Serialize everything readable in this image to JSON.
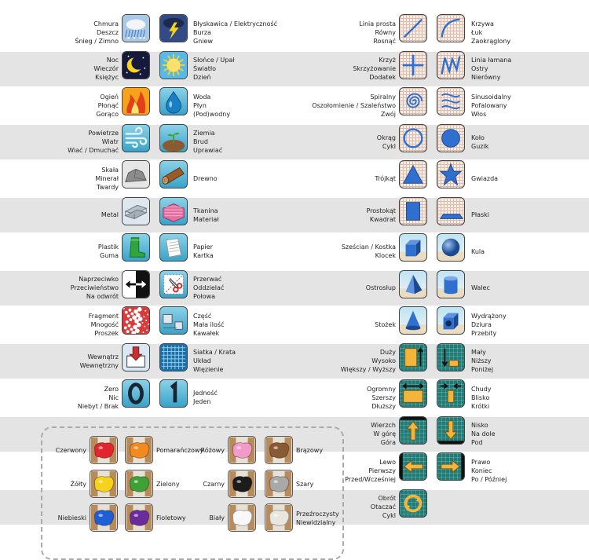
{
  "left_rows": [
    {
      "left": [
        "Chmura",
        "Deszcz",
        "Śnieg / Zimno"
      ],
      "right": [
        "Błyskawica / Elektryczność",
        "Burza",
        "Gniew"
      ],
      "icon_left": "cloud-rain-snow-icon",
      "icon_right": "lightning-storm-icon"
    },
    {
      "left": [
        "Noc",
        "Wieczór",
        "Księżyc"
      ],
      "right": [
        "Słońce / Upał",
        "Światło",
        "Dzień"
      ],
      "icon_left": "moon-night-icon",
      "icon_right": "sun-icon"
    },
    {
      "left": [
        "Ogień",
        "Płonąć",
        "Gorąco"
      ],
      "right": [
        "Woda",
        "Płyn",
        "(Pod)wodny"
      ],
      "icon_left": "fire-icon",
      "icon_right": "water-drop-icon"
    },
    {
      "left": [
        "Powietrze",
        "Wiatr",
        "Wiać / Dmuchać"
      ],
      "right": [
        "Ziemia",
        "Brud",
        "Uprawiać"
      ],
      "icon_left": "wind-icon",
      "icon_right": "soil-sprout-icon"
    },
    {
      "left": [
        "Skała",
        "Minerał",
        "Twardy"
      ],
      "right": [
        "Drewno"
      ],
      "icon_left": "rock-icon",
      "icon_right": "wood-log-icon"
    },
    {
      "left": [
        "Metal"
      ],
      "right": [
        "Tkanina",
        "Materiał"
      ],
      "icon_left": "metal-bars-icon",
      "icon_right": "fabric-icon"
    },
    {
      "left": [
        "Plastik",
        "Guma"
      ],
      "right": [
        "Papier",
        "Kartka"
      ],
      "icon_left": "rubber-boot-icon",
      "icon_right": "paper-icon"
    },
    {
      "left": [
        "Naprzeciwko",
        "Przeciwieństwo",
        "Na odwrót"
      ],
      "right": [
        "Przerwać",
        "Oddzielać",
        "Połowa"
      ],
      "icon_left": "opposite-arrows-icon",
      "icon_right": "scissors-cut-icon"
    },
    {
      "left": [
        "Fragment",
        "Mnogość",
        "Proszek"
      ],
      "right": [
        "Część",
        "Mała ilość",
        "Kawałek"
      ],
      "icon_left": "fragments-icon",
      "icon_right": "part-pieces-icon"
    },
    {
      "left": [
        "Wewnątrz",
        "Wewnętrzny"
      ],
      "right": [
        "Siatka / Krata",
        "Układ",
        "Więzienie"
      ],
      "icon_left": "inside-box-icon",
      "icon_right": "grid-lattice-icon"
    },
    {
      "left": [
        "Zero",
        "Nic",
        "Niebyt / Brak"
      ],
      "right": [
        "Jedność",
        "Jeden"
      ],
      "icon_left": "zero-icon",
      "icon_right": "one-icon"
    }
  ],
  "right_rows": [
    {
      "left": [
        "Linia prosta",
        "Równy",
        "Rosnąć"
      ],
      "right": [
        "Krzywa",
        "Łuk",
        "Zaokrąglony"
      ],
      "icon_left": "straight-line-icon",
      "icon_right": "curve-icon"
    },
    {
      "left": [
        "Krzyż",
        "Skrzyżowanie",
        "Dodatek"
      ],
      "right": [
        "Linia łamana",
        "Ostry",
        "Nierówny"
      ],
      "icon_left": "cross-icon",
      "icon_right": "zigzag-icon"
    },
    {
      "left": [
        "Spiralny",
        "Oszołomienie / Szaleństwo",
        "Zwój"
      ],
      "right": [
        "Sinusoidalny",
        "Pofalowany",
        "Włos"
      ],
      "icon_left": "spiral-icon",
      "icon_right": "wave-icon"
    },
    {
      "left": [
        "Okrąg",
        "Cykl"
      ],
      "right": [
        "Koło",
        "Guzik"
      ],
      "icon_left": "circle-outline-icon",
      "icon_right": "filled-circle-icon"
    },
    {
      "left": [
        "Trójkąt"
      ],
      "right": [
        "Gwiazda"
      ],
      "icon_left": "triangle-icon",
      "icon_right": "star-icon"
    },
    {
      "left": [
        "Prostokąt",
        "Kwadrat"
      ],
      "right": [
        "Płaski"
      ],
      "icon_left": "rectangle-icon",
      "icon_right": "flat-icon"
    },
    {
      "left": [
        "Sześcian / Kostka",
        "Klocek"
      ],
      "right": [
        "Kula"
      ],
      "icon_left": "cube-icon",
      "icon_right": "sphere-icon"
    },
    {
      "left": [
        "Ostrosłup"
      ],
      "right": [
        "Walec"
      ],
      "icon_left": "pyramid-icon",
      "icon_right": "cylinder-icon"
    },
    {
      "left": [
        "Stożek"
      ],
      "right": [
        "Wydrążony",
        "Dziura",
        "Przebity"
      ],
      "icon_left": "cone-icon",
      "icon_right": "hollow-cube-icon"
    },
    {
      "left": [
        "Duży",
        "Wysoko",
        "Większy / Wyższy"
      ],
      "right": [
        "Mały",
        "Niższy",
        "Poniżej"
      ],
      "icon_left": "big-arrow-up-icon",
      "icon_right": "small-arrow-down-icon"
    },
    {
      "left": [
        "Ogromny",
        "Szerszy",
        "Dłuższy"
      ],
      "right": [
        "Chudy",
        "Blisko",
        "Krótki"
      ],
      "icon_left": "wide-arrows-icon",
      "icon_right": "narrow-arrows-icon"
    },
    {
      "left": [
        "Wierzch",
        "W górę",
        "Góra"
      ],
      "right": [
        "Nisko",
        "Na dole",
        "Pod"
      ],
      "icon_left": "arrow-up-icon",
      "icon_right": "arrow-down-icon"
    },
    {
      "left": [
        "Lewo",
        "Pierwszy",
        "Przed/Wcześniej"
      ],
      "right": [
        "Prawo",
        "Koniec",
        "Po / Później"
      ],
      "icon_left": "arrow-left-icon",
      "icon_right": "arrow-right-icon"
    },
    {
      "left": [
        "Obrót",
        "Otaczać",
        "Cykl"
      ],
      "right": [],
      "icon_left": "rotation-cycle-icon",
      "icon_right": ""
    }
  ],
  "colors": [
    {
      "label": "Czerwony",
      "color": "#e3262e",
      "side": "left"
    },
    {
      "label": "Pomarańczowy",
      "color": "#f28a1e",
      "side": "right"
    },
    {
      "label": "Różowy",
      "color": "#f49ac8",
      "side": "left"
    },
    {
      "label": "Brązowy",
      "color": "#8a5a33",
      "side": "right"
    },
    {
      "label": "Żółty",
      "color": "#f6d21b",
      "side": "left"
    },
    {
      "label": "Zielony",
      "color": "#3ea136",
      "side": "right"
    },
    {
      "label": "Czarny",
      "color": "#1c1c1c",
      "side": "left"
    },
    {
      "label": "Szary",
      "color": "#a9a9a9",
      "side": "right"
    },
    {
      "label": "Niebieski",
      "color": "#1f5fd3",
      "side": "left"
    },
    {
      "label": "Fioletowy",
      "color": "#6a2b9b",
      "side": "right"
    },
    {
      "label": "Biały",
      "color": "#f8f8f8",
      "side": "left"
    },
    {
      "label": "Przeźroczysty",
      "label2": "Niewidzialny",
      "color": "#e9e6df",
      "side": "right"
    }
  ],
  "palette": {
    "band": "#e4e4e4",
    "shape_blue": "#2f6fd0",
    "icon_teal": "#1f7d78",
    "icon_nature": "#39a3c8"
  }
}
